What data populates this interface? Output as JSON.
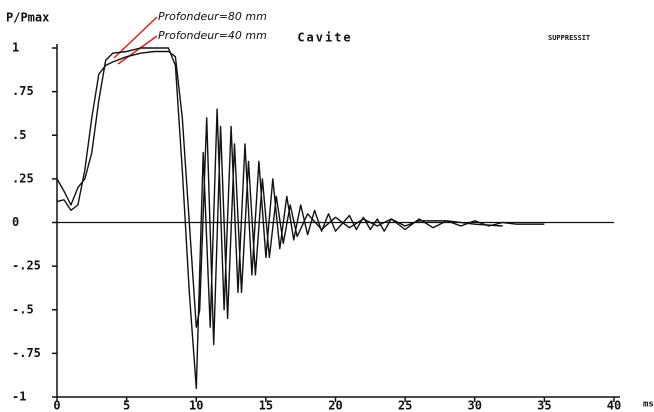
{
  "chart_data": {
    "type": "line",
    "title": "Cavite",
    "corner_label": "SUPPRESSIT",
    "ylabel": "P/Pmax",
    "xlabel": "ms",
    "xlim": [
      0,
      40
    ],
    "xticks": [
      0,
      5,
      10,
      15,
      20,
      25,
      30,
      35,
      40
    ],
    "ylim": [
      -1,
      1
    ],
    "yticks": [
      {
        "value": -1,
        "label": "-1"
      },
      {
        "value": -0.75,
        "label": "-.75"
      },
      {
        "value": -0.5,
        "label": "-.5"
      },
      {
        "value": -0.25,
        "label": "-.25"
      },
      0,
      {
        "value": 0.25,
        "label": ".25"
      },
      {
        "value": 0.5,
        "label": ".5"
      },
      {
        "value": 0.75,
        "label": ".75"
      },
      1
    ],
    "series": [
      {
        "name": "Profondeur=80 mm",
        "color": "#111111",
        "x": [
          0,
          0.5,
          1,
          1.5,
          2,
          2.5,
          3,
          3.5,
          4,
          5,
          6,
          7,
          8,
          8.5,
          9,
          9.5,
          10,
          10.5,
          11,
          11.5,
          12,
          12.5,
          13,
          13.5,
          14,
          14.5,
          15,
          15.5,
          16,
          16.5,
          17,
          17.5,
          18,
          18.5,
          19,
          19.5,
          20,
          21,
          21.5,
          22,
          22.5,
          23,
          23.5,
          24,
          25,
          26,
          27,
          28,
          29,
          30,
          31,
          32,
          33,
          35
        ],
        "values": [
          0.25,
          0.18,
          0.1,
          0.2,
          0.25,
          0.4,
          0.7,
          0.93,
          0.97,
          0.98,
          1.0,
          1.0,
          1.0,
          0.9,
          0.3,
          -0.4,
          -0.95,
          0.4,
          -0.6,
          0.65,
          -0.5,
          0.55,
          -0.4,
          0.45,
          -0.3,
          0.35,
          -0.2,
          0.25,
          -0.15,
          0.15,
          -0.1,
          0.1,
          -0.07,
          0.07,
          -0.05,
          0.05,
          -0.05,
          0.04,
          -0.04,
          0.03,
          -0.04,
          0.02,
          -0.05,
          0.02,
          -0.04,
          0.02,
          -0.03,
          0.01,
          -0.02,
          0.01,
          -0.02,
          0,
          -0.01,
          -0.01
        ]
      },
      {
        "name": "Profondeur=40 mm",
        "color": "#111111",
        "x": [
          0,
          0.5,
          1,
          1.5,
          2,
          2.5,
          3,
          3.5,
          4,
          5,
          6,
          7,
          8,
          8.5,
          9,
          9.5,
          10,
          10.25,
          10.75,
          11.25,
          11.75,
          12.25,
          12.75,
          13.25,
          13.75,
          14.25,
          14.75,
          15.25,
          15.75,
          16.25,
          16.75,
          17.25,
          18,
          19,
          20,
          21,
          22,
          23,
          24,
          25,
          26,
          28,
          30,
          32
        ],
        "values": [
          0.12,
          0.13,
          0.07,
          0.1,
          0.3,
          0.6,
          0.85,
          0.9,
          0.92,
          0.95,
          0.97,
          0.98,
          0.98,
          0.95,
          0.6,
          0,
          -0.6,
          -0.5,
          0.6,
          -0.7,
          0.55,
          -0.55,
          0.45,
          -0.4,
          0.35,
          -0.3,
          0.25,
          -0.2,
          0.15,
          -0.12,
          0.1,
          -0.08,
          0.05,
          -0.04,
          0.03,
          -0.03,
          0.02,
          -0.02,
          0.02,
          -0.02,
          0.01,
          0.01,
          -0.01,
          -0.02
        ]
      }
    ]
  }
}
